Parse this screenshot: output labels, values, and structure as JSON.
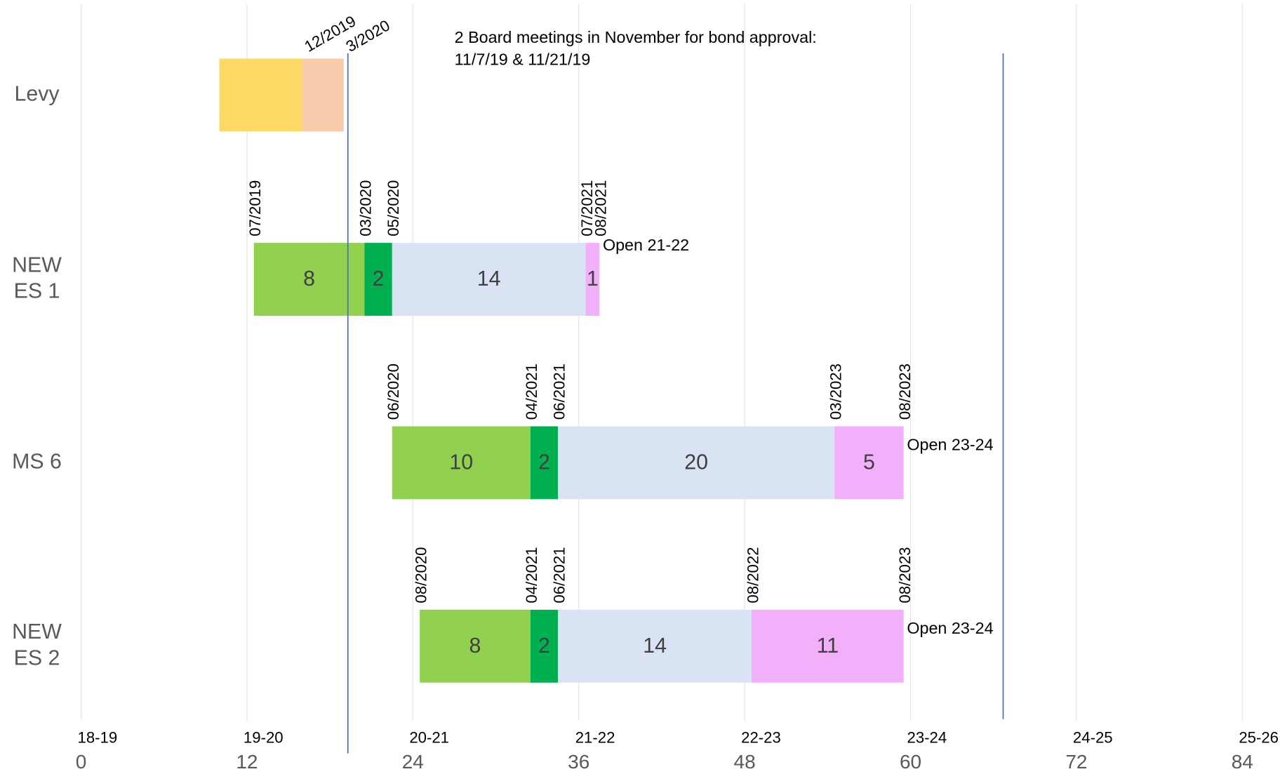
{
  "chart_data": {
    "type": "stacked-bar-horizontal",
    "categories": [
      "Levy",
      "NEW ES 1",
      "MS 6",
      "NEW ES 2"
    ],
    "series": [
      {
        "color": "none",
        "values": [
          10,
          12.5,
          22.5,
          24.5
        ]
      },
      {
        "color": "#92d050",
        "colors": [
          "#ffd966",
          "#92d050",
          "#92d050",
          "#92d050"
        ],
        "values": [
          6,
          8,
          10,
          8
        ]
      },
      {
        "color": "#00b050",
        "colors": [
          "#f8cbad",
          "#00b050",
          "#00b050",
          "#00b050"
        ],
        "values": [
          3,
          2,
          2,
          2
        ]
      },
      {
        "color": "#dae3f3",
        "values": [
          null,
          14,
          20,
          14
        ]
      },
      {
        "color": "#f1b0f9",
        "values": [
          null,
          1,
          5,
          11
        ]
      }
    ],
    "data_labels": [
      false,
      true,
      true,
      true
    ],
    "xlim": [
      0,
      84
    ],
    "xticks": [
      0,
      12,
      24,
      36,
      48,
      60,
      72,
      84
    ],
    "xtick_periods": [
      "18-19",
      "19-20",
      "20-21",
      "21-22",
      "22-23",
      "23-24",
      "24-25",
      "25-26"
    ],
    "grid": true,
    "markers": [
      {
        "x": 19.3,
        "color": "#4472c4"
      },
      {
        "x": 66.7,
        "color": "#4472c4"
      }
    ],
    "date_labels": [
      {
        "text": "12/2019",
        "x": 16,
        "row": 0,
        "rotate": -30
      },
      {
        "text": "3/2020",
        "x": 19,
        "row": 0,
        "rotate": -30
      },
      {
        "text": "07/2019",
        "x": 12.5,
        "row": 1,
        "rotate": -90
      },
      {
        "text": "03/2020",
        "x": 20.5,
        "row": 1,
        "rotate": -90
      },
      {
        "text": "05/2020",
        "x": 22.5,
        "row": 1,
        "rotate": -90
      },
      {
        "text": "07/2021",
        "x": 36.5,
        "row": 1,
        "rotate": -90
      },
      {
        "text": "08/2021",
        "x": 37.5,
        "row": 1,
        "rotate": -90
      },
      {
        "text": "06/2020",
        "x": 22.5,
        "row": 2,
        "rotate": -90
      },
      {
        "text": "04/2021",
        "x": 32.5,
        "row": 2,
        "rotate": -90
      },
      {
        "text": "06/2021",
        "x": 34.5,
        "row": 2,
        "rotate": -90
      },
      {
        "text": "03/2023",
        "x": 54.5,
        "row": 2,
        "rotate": -90
      },
      {
        "text": "08/2023",
        "x": 59.5,
        "row": 2,
        "rotate": -90
      },
      {
        "text": "08/2020",
        "x": 24.5,
        "row": 3,
        "rotate": -90
      },
      {
        "text": "04/2021",
        "x": 32.5,
        "row": 3,
        "rotate": -90
      },
      {
        "text": "06/2021",
        "x": 34.5,
        "row": 3,
        "rotate": -90
      },
      {
        "text": "08/2022",
        "x": 48.5,
        "row": 3,
        "rotate": -90
      },
      {
        "text": "08/2023",
        "x": 59.5,
        "row": 3,
        "rotate": -90
      }
    ],
    "open_labels": [
      {
        "text": "Open 21-22",
        "row": 1
      },
      {
        "text": "Open 23-24",
        "row": 2
      },
      {
        "text": "Open 23-24",
        "row": 3
      }
    ],
    "annotation": [
      "2 Board meetings in November for bond approval:",
      "11/7/19 & 11/21/19"
    ]
  }
}
